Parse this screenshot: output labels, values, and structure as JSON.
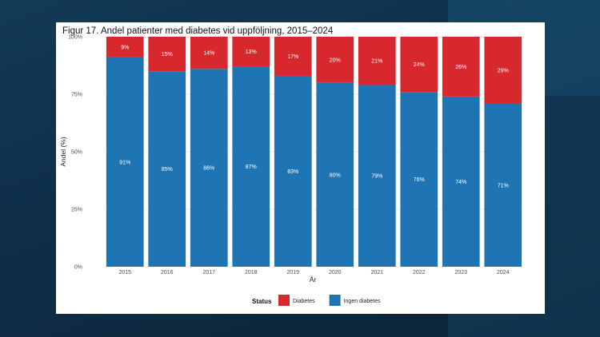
{
  "colors": {
    "diabetes": "#d7282d",
    "ingen_diabetes": "#1f74b4",
    "grid": "#e6e6e6",
    "text": "#4d4d4d",
    "bar_label": "#ffffff"
  },
  "chart_data": {
    "type": "bar",
    "stacked": true,
    "title": "Figur 17. Andel patienter med diabetes vid uppföljning, 2015–2024",
    "xlabel": "År",
    "ylabel": "Andel (%)",
    "ylim": [
      0,
      100
    ],
    "yticks": [
      0,
      25,
      50,
      75,
      100
    ],
    "ytick_labels": [
      "0%",
      "25%",
      "50%",
      "75%",
      "100%"
    ],
    "categories": [
      "2015",
      "2016",
      "2017",
      "2018",
      "2019",
      "2020",
      "2021",
      "2022",
      "2023",
      "2024"
    ],
    "series": [
      {
        "name": "Ingen diabetes",
        "values": [
          91,
          85,
          86,
          87,
          83,
          80,
          79,
          76,
          74,
          71
        ],
        "labels": [
          "91%",
          "85%",
          "86%",
          "87%",
          "83%",
          "80%",
          "79%",
          "76%",
          "74%",
          "71%"
        ]
      },
      {
        "name": "Diabetes",
        "values": [
          9,
          15,
          14,
          13,
          17,
          20,
          21,
          24,
          26,
          29
        ],
        "labels": [
          "9%",
          "15%",
          "14%",
          "13%",
          "17%",
          "20%",
          "21%",
          "24%",
          "26%",
          "29%"
        ]
      }
    ],
    "legend": {
      "title": "Status",
      "position": "bottom",
      "entries": [
        "Diabetes",
        "Ingen diabetes"
      ]
    },
    "grid": true
  }
}
